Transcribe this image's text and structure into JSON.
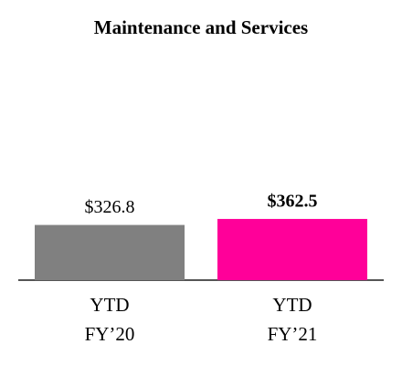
{
  "chart_data": {
    "type": "bar",
    "title": "Maintenance and Services",
    "categories": [
      "YTD\nFY’20",
      "YTD\nFY’21"
    ],
    "values": [
      326.8,
      362.5
    ],
    "value_labels": [
      "$326.8",
      "$362.5"
    ],
    "colors": [
      "#808080",
      "#ff0099"
    ],
    "ylim": [
      0,
      1000
    ]
  }
}
